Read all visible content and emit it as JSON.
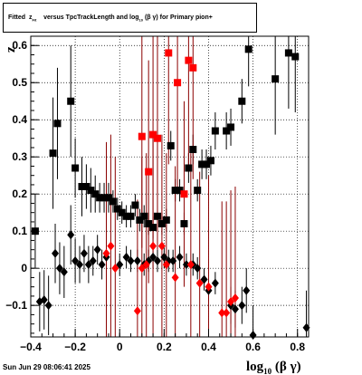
{
  "title": {
    "prefix": "Fitted",
    "z": "z",
    "sub_fit": "Fit",
    "middle": "versus TpcTrackLength and log",
    "sub_10": "10",
    "suffix": "(β γ) for Primary pion+"
  },
  "timestamp": "Sun Jun 29 08:06:41 2025",
  "colors": {
    "black_series": "#000000",
    "red_series": "#ff0000",
    "red_err": "#8b0000"
  },
  "chart_data": {
    "type": "scatter",
    "xlim": [
      -0.4,
      0.85
    ],
    "ylim": [
      -0.185,
      0.625
    ],
    "xlabel": "log10(β γ)",
    "ylabel": "z",
    "x_ticks": [
      "−0.4",
      "−0.2",
      "0",
      "0.2",
      "0.4",
      "0.6",
      "0.8"
    ],
    "x_tick_values": [
      -0.4,
      -0.2,
      0,
      0.2,
      0.4,
      0.6,
      0.8
    ],
    "y_ticks": [
      "−0.1",
      "0",
      "0.1",
      "0.2",
      "0.3",
      "0.4",
      "0.5",
      "0.6"
    ],
    "y_tick_values": [
      -0.1,
      0,
      0.1,
      0.2,
      0.3,
      0.4,
      0.5,
      0.6
    ],
    "grid": true,
    "series": [
      {
        "marker": "square",
        "color": "#000000",
        "points": [
          {
            "x": -0.38,
            "y": 0.1,
            "err": 0.1
          },
          {
            "x": -0.3,
            "y": 0.31,
            "err": 0.15
          },
          {
            "x": -0.28,
            "y": 0.39,
            "err": 0.15
          },
          {
            "x": -0.22,
            "y": 0.45,
            "err": 0.15
          },
          {
            "x": -0.2,
            "y": 0.27,
            "err": 0.08
          },
          {
            "x": -0.17,
            "y": 0.22,
            "err": 0.08
          },
          {
            "x": -0.15,
            "y": 0.22,
            "err": 0.06
          },
          {
            "x": -0.13,
            "y": 0.21,
            "err": 0.06
          },
          {
            "x": -0.11,
            "y": 0.2,
            "err": 0.05
          },
          {
            "x": -0.09,
            "y": 0.19,
            "err": 0.04
          },
          {
            "x": -0.07,
            "y": 0.19,
            "err": 0.04
          },
          {
            "x": -0.05,
            "y": 0.19,
            "err": 0.04
          },
          {
            "x": -0.03,
            "y": 0.18,
            "err": 0.03
          },
          {
            "x": -0.01,
            "y": 0.16,
            "err": 0.03
          },
          {
            "x": 0.01,
            "y": 0.15,
            "err": 0.03
          },
          {
            "x": 0.03,
            "y": 0.14,
            "err": 0.03
          },
          {
            "x": 0.05,
            "y": 0.14,
            "err": 0.03
          },
          {
            "x": 0.07,
            "y": 0.17,
            "err": 0.03
          },
          {
            "x": 0.09,
            "y": 0.13,
            "err": 0.03
          },
          {
            "x": 0.11,
            "y": 0.14,
            "err": 0.03
          },
          {
            "x": 0.13,
            "y": 0.12,
            "err": 0.03
          },
          {
            "x": 0.15,
            "y": 0.11,
            "err": 0.03
          },
          {
            "x": 0.17,
            "y": 0.14,
            "err": 0.03
          },
          {
            "x": 0.19,
            "y": 0.12,
            "err": 0.03
          },
          {
            "x": 0.21,
            "y": 0.13,
            "err": 0.03
          },
          {
            "x": 0.23,
            "y": 0.33,
            "err": 0.04
          },
          {
            "x": 0.25,
            "y": 0.21,
            "err": 0.03
          },
          {
            "x": 0.27,
            "y": 0.21,
            "err": 0.03
          },
          {
            "x": 0.29,
            "y": 0.12,
            "err": 0.03
          },
          {
            "x": 0.31,
            "y": 0.27,
            "err": 0.04
          },
          {
            "x": 0.33,
            "y": 0.32,
            "err": 0.04
          },
          {
            "x": 0.35,
            "y": 0.21,
            "err": 0.03
          },
          {
            "x": 0.37,
            "y": 0.28,
            "err": 0.04
          },
          {
            "x": 0.39,
            "y": 0.28,
            "err": 0.04
          },
          {
            "x": 0.41,
            "y": 0.29,
            "err": 0.04
          },
          {
            "x": 0.43,
            "y": 0.37,
            "err": 0.05
          },
          {
            "x": 0.48,
            "y": 0.37,
            "err": 0.05
          },
          {
            "x": 0.5,
            "y": 0.38,
            "err": 0.05
          },
          {
            "x": 0.55,
            "y": 0.45,
            "err": 0.06
          },
          {
            "x": 0.58,
            "y": 0.59,
            "err": 0.1
          },
          {
            "x": 0.7,
            "y": 0.51,
            "err": 0.15
          },
          {
            "x": 0.76,
            "y": 0.58,
            "err": 0.15
          },
          {
            "x": 0.79,
            "y": 0.57,
            "err": 0.15
          }
        ]
      },
      {
        "marker": "diamond",
        "color": "#000000",
        "points": [
          {
            "x": -0.36,
            "y": -0.09,
            "err": 0.08
          },
          {
            "x": -0.34,
            "y": -0.085,
            "err": 0.08
          },
          {
            "x": -0.32,
            "y": -0.1,
            "err": 0.08
          },
          {
            "x": -0.29,
            "y": 0.04,
            "err": 0.08
          },
          {
            "x": -0.27,
            "y": 0.0,
            "err": 0.07
          },
          {
            "x": -0.25,
            "y": -0.01,
            "err": 0.07
          },
          {
            "x": -0.22,
            "y": 0.09,
            "err": 0.08
          },
          {
            "x": -0.2,
            "y": 0.02,
            "err": 0.06
          },
          {
            "x": -0.18,
            "y": 0.01,
            "err": 0.05
          },
          {
            "x": -0.16,
            "y": 0.04,
            "err": 0.05
          },
          {
            "x": -0.14,
            "y": 0.01,
            "err": 0.05
          },
          {
            "x": -0.12,
            "y": 0.02,
            "err": 0.04
          },
          {
            "x": -0.1,
            "y": 0.05,
            "err": 0.04
          },
          {
            "x": -0.08,
            "y": 0.01,
            "err": 0.04
          },
          {
            "x": -0.06,
            "y": 0.03,
            "err": 0.04
          },
          {
            "x": 0.0,
            "y": 0.01,
            "err": 0.03
          },
          {
            "x": 0.03,
            "y": 0.03,
            "err": 0.03
          },
          {
            "x": 0.05,
            "y": 0.02,
            "err": 0.03
          },
          {
            "x": 0.08,
            "y": 0.02,
            "err": 0.03
          },
          {
            "x": 0.11,
            "y": 0.01,
            "err": 0.03
          },
          {
            "x": 0.13,
            "y": 0.02,
            "err": 0.03
          },
          {
            "x": 0.15,
            "y": 0.03,
            "err": 0.03
          },
          {
            "x": 0.17,
            "y": 0.02,
            "err": 0.03
          },
          {
            "x": 0.2,
            "y": 0.03,
            "err": 0.03
          },
          {
            "x": 0.22,
            "y": 0.02,
            "err": 0.03
          },
          {
            "x": 0.24,
            "y": 0.02,
            "err": 0.03
          },
          {
            "x": 0.27,
            "y": 0.03,
            "err": 0.03
          },
          {
            "x": 0.3,
            "y": 0.01,
            "err": 0.03
          },
          {
            "x": 0.33,
            "y": 0.01,
            "err": 0.03
          },
          {
            "x": 0.35,
            "y": 0.0,
            "err": 0.03
          },
          {
            "x": 0.38,
            "y": -0.03,
            "err": 0.03
          },
          {
            "x": 0.4,
            "y": -0.06,
            "err": 0.03
          },
          {
            "x": 0.43,
            "y": -0.04,
            "err": 0.03
          },
          {
            "x": 0.5,
            "y": -0.1,
            "err": 0.05
          },
          {
            "x": 0.52,
            "y": -0.11,
            "err": 0.05
          },
          {
            "x": 0.55,
            "y": -0.1,
            "err": 0.05
          },
          {
            "x": 0.57,
            "y": -0.06,
            "err": 0.06
          },
          {
            "x": 0.6,
            "y": -0.18,
            "err": 0.08
          },
          {
            "x": 0.84,
            "y": -0.16,
            "err": 0.1
          }
        ]
      },
      {
        "marker": "square",
        "color": "#ff0000",
        "points": [
          {
            "x": 0.1,
            "y": 0.355,
            "err": 0.3
          },
          {
            "x": 0.13,
            "y": 0.26,
            "err": 0.3
          },
          {
            "x": 0.15,
            "y": 0.36,
            "err": 0.3
          },
          {
            "x": 0.17,
            "y": 0.35,
            "err": 0.3
          },
          {
            "x": 0.22,
            "y": 0.58,
            "err": 0.3
          },
          {
            "x": 0.26,
            "y": 0.5,
            "err": 0.3
          },
          {
            "x": 0.29,
            "y": 0.2,
            "err": 0.25
          },
          {
            "x": 0.31,
            "y": 0.56,
            "err": 0.3
          },
          {
            "x": 0.33,
            "y": 0.54,
            "err": 0.3
          }
        ]
      },
      {
        "marker": "diamond",
        "color": "#ff0000",
        "points": [
          {
            "x": -0.06,
            "y": 0.04,
            "err": 0.3
          },
          {
            "x": -0.04,
            "y": 0.06,
            "err": 0.3
          },
          {
            "x": -0.02,
            "y": 0.0,
            "err": 0.3
          },
          {
            "x": 0.08,
            "y": -0.115,
            "err": 0.3
          },
          {
            "x": 0.1,
            "y": 0.0,
            "err": 0.3
          },
          {
            "x": 0.12,
            "y": 0.01,
            "err": 0.3
          },
          {
            "x": 0.15,
            "y": 0.06,
            "err": 0.3
          },
          {
            "x": 0.19,
            "y": 0.06,
            "err": 0.3
          },
          {
            "x": 0.21,
            "y": 0.01,
            "err": 0.3
          },
          {
            "x": 0.25,
            "y": -0.025,
            "err": 0.3
          },
          {
            "x": 0.32,
            "y": 0.01,
            "err": 0.3
          },
          {
            "x": 0.36,
            "y": -0.04,
            "err": 0.3
          },
          {
            "x": 0.4,
            "y": -0.05,
            "err": 0.3
          },
          {
            "x": 0.46,
            "y": -0.12,
            "err": 0.3
          },
          {
            "x": 0.48,
            "y": -0.12,
            "err": 0.3
          },
          {
            "x": 0.5,
            "y": -0.09,
            "err": 0.3
          },
          {
            "x": 0.52,
            "y": -0.08,
            "err": 0.3
          }
        ]
      }
    ]
  }
}
